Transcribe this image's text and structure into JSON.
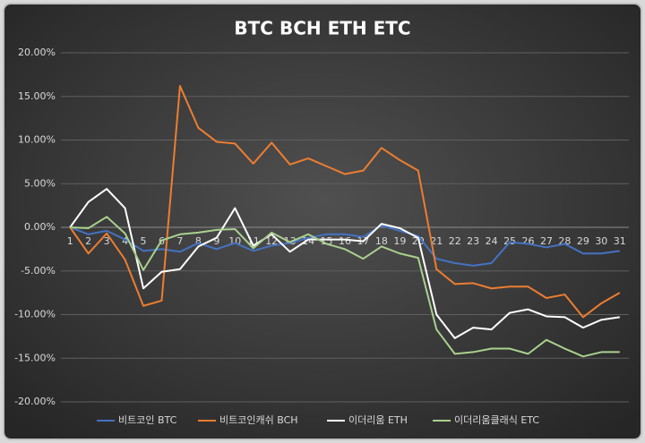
{
  "chart_data": {
    "type": "line",
    "title": "BTC BCH ETH ETC",
    "categories": [
      "1",
      "2",
      "3",
      "4",
      "5",
      "6",
      "7",
      "8",
      "9",
      "10",
      "11",
      "12",
      "13",
      "14",
      "15",
      "16",
      "17",
      "18",
      "19",
      "20",
      "21",
      "22",
      "23",
      "24",
      "25",
      "26",
      "27",
      "28",
      "29",
      "30",
      "31"
    ],
    "series": [
      {
        "name": "비트코인 BTC",
        "color": "#4472c4",
        "values": [
          0,
          -0.8,
          -0.4,
          -1.4,
          -2.7,
          -2.5,
          -2.8,
          -1.8,
          -2.5,
          -1.8,
          -2.7,
          -2.1,
          -1.8,
          -1.2,
          -0.8,
          -0.8,
          -1.1,
          0.2,
          -0.4,
          -1.0,
          -3.6,
          -4.1,
          -4.4,
          -4.1,
          -1.7,
          -1.9,
          -2.3,
          -1.9,
          -3.0,
          -3.0,
          -2.7
        ]
      },
      {
        "name": "비트코인캐쉬 BCH",
        "color": "#ed7d31",
        "values": [
          0,
          -3.0,
          -0.7,
          -3.7,
          -9.0,
          -8.4,
          16.2,
          11.4,
          9.8,
          9.6,
          7.3,
          9.7,
          7.2,
          7.9,
          7.0,
          6.1,
          6.5,
          9.1,
          7.7,
          6.5,
          -4.8,
          -6.5,
          -6.4,
          -7.0,
          -6.8,
          -6.8,
          -8.1,
          -7.7,
          -10.3,
          -8.7,
          -7.5
        ]
      },
      {
        "name": "이더리움 ETH",
        "color": "#ffffff",
        "values": [
          0,
          2.9,
          4.4,
          2.2,
          -7.0,
          -5.1,
          -4.8,
          -2.2,
          -1.2,
          2.2,
          -2.1,
          -0.8,
          -2.8,
          -1.4,
          -1.4,
          -1.4,
          -1.6,
          0.4,
          -0.1,
          -1.2,
          -10.0,
          -12.7,
          -11.5,
          -11.7,
          -9.8,
          -9.4,
          -10.2,
          -10.3,
          -11.5,
          -10.6,
          -10.3
        ]
      },
      {
        "name": "이더리움클래식 ETC",
        "color": "#a9d18e",
        "values": [
          0,
          -0.1,
          1.2,
          -0.7,
          -4.9,
          -1.5,
          -0.8,
          -0.6,
          -0.3,
          -0.2,
          -2.4,
          -0.6,
          -1.7,
          -0.8,
          -1.9,
          -2.5,
          -3.6,
          -2.2,
          -3.0,
          -3.5,
          -11.7,
          -14.5,
          -14.3,
          -13.9,
          -13.9,
          -14.5,
          -12.9,
          -13.9,
          -14.8,
          -14.3,
          -14.3
        ]
      }
    ],
    "ylim": [
      -20,
      20
    ],
    "yticks": [
      {
        "value": -20,
        "label": "-20.00%"
      },
      {
        "value": -15,
        "label": "-15.00%"
      },
      {
        "value": -10,
        "label": "-10.00%"
      },
      {
        "value": -5,
        "label": "-5.00%"
      },
      {
        "value": 0,
        "label": "0.00%"
      },
      {
        "value": 5,
        "label": "5.00%"
      },
      {
        "value": 10,
        "label": "10.00%"
      },
      {
        "value": 15,
        "label": "15.00%"
      },
      {
        "value": 20,
        "label": "20.00%"
      }
    ],
    "grid": true
  }
}
